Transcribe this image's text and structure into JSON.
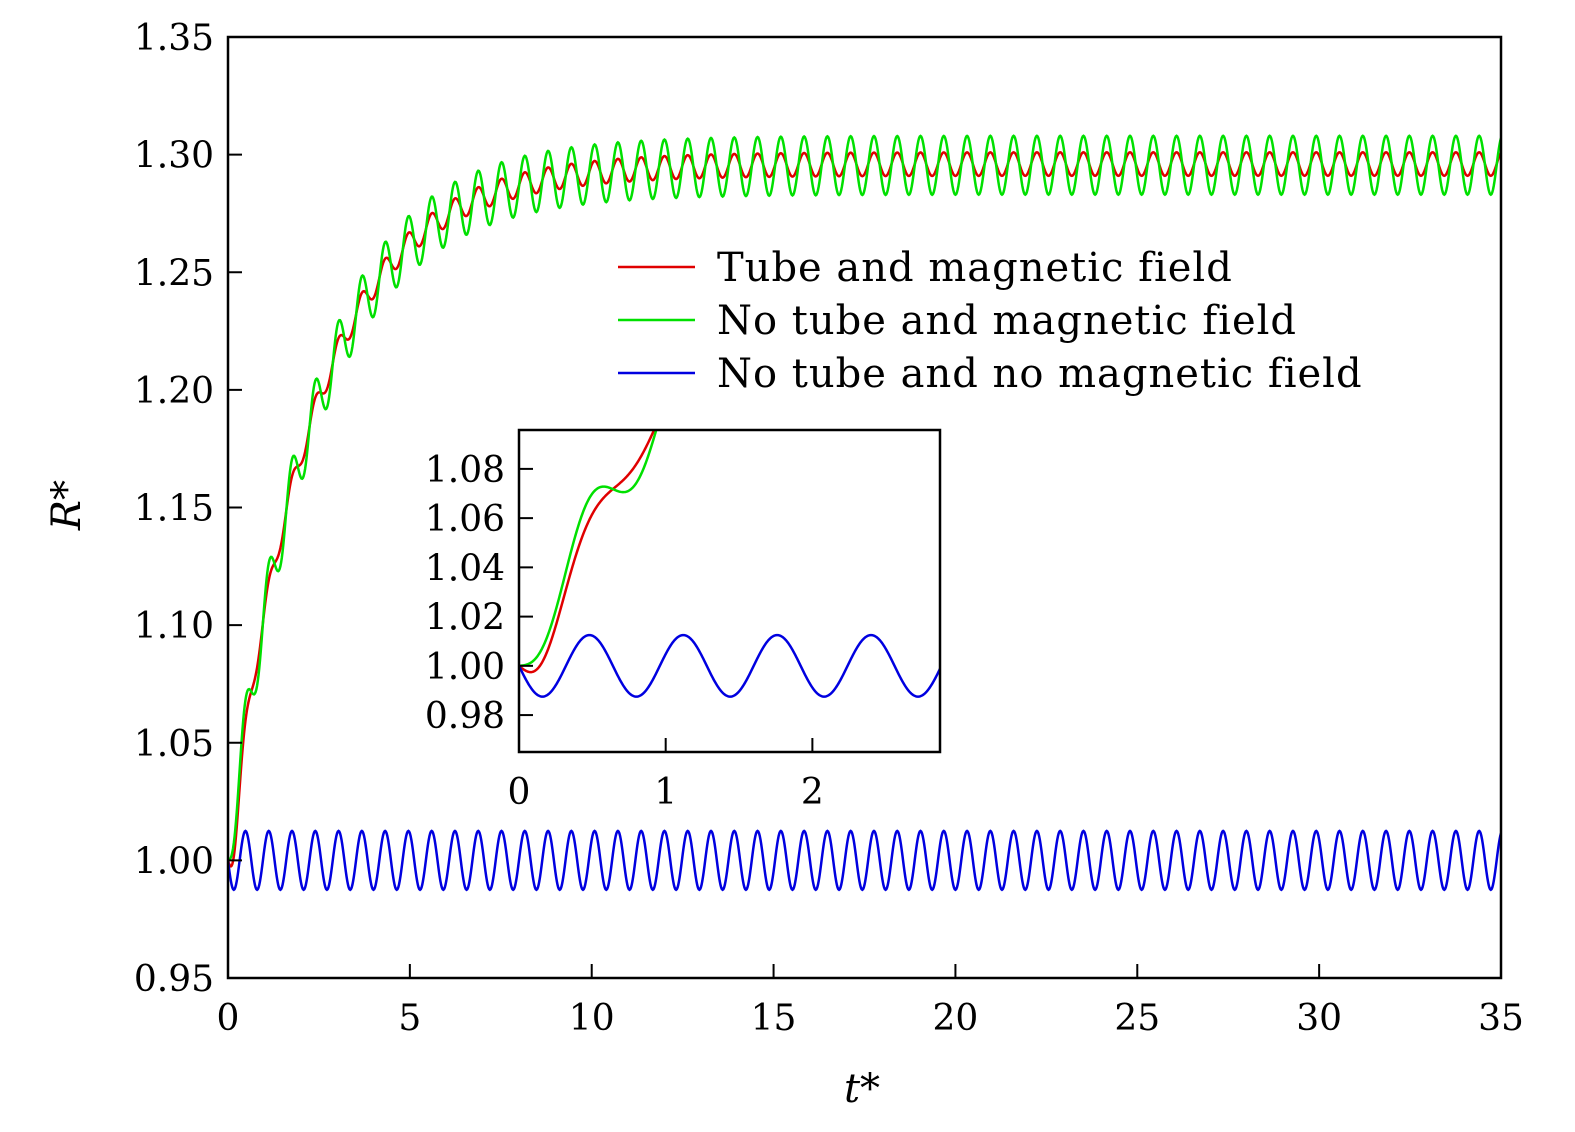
{
  "chart_data": {
    "type": "line",
    "title": "",
    "xlabel": "t*",
    "ylabel": "R*",
    "xlim": [
      0,
      35
    ],
    "ylim": [
      0.95,
      1.35
    ],
    "xticks": [
      "0",
      "5",
      "10",
      "15",
      "20",
      "25",
      "30",
      "35"
    ],
    "xtick_values": [
      0,
      5,
      10,
      15,
      20,
      25,
      30,
      35
    ],
    "yticks": [
      "0.95",
      "1.00",
      "1.05",
      "1.10",
      "1.15",
      "1.20",
      "1.25",
      "1.30",
      "1.35"
    ],
    "ytick_values": [
      0.95,
      1.0,
      1.05,
      1.1,
      1.15,
      1.2,
      1.25,
      1.3,
      1.35
    ],
    "grid": false,
    "legend_position": "upper-right",
    "series": [
      {
        "name": "Tube and magnetic field",
        "color": "#e00000",
        "model": {
          "base": 1.0,
          "rise": 0.296,
          "tau": 2.3,
          "osc_amplitude": 0.005,
          "period": 0.64,
          "onset": 0.25
        }
      },
      {
        "name": "No tube and magnetic field",
        "color": "#00e000",
        "model": {
          "base": 1.0,
          "rise": 0.2955,
          "tau": 2.3,
          "osc_amplitude": 0.0125,
          "period": 0.64,
          "onset": 0
        }
      },
      {
        "name": "No tube and no magnetic field",
        "color": "#0000e0",
        "model": {
          "base": 1.0,
          "rise": 0.0,
          "tau": 1.0,
          "osc_amplitude": 0.0125,
          "period": 0.64,
          "onset": 0
        }
      }
    ],
    "inset": {
      "xlim": [
        0,
        2.87
      ],
      "ylim": [
        0.965,
        1.0958
      ],
      "xticks": [
        "0",
        "1",
        "2"
      ],
      "xtick_values": [
        0,
        1,
        2
      ],
      "yticks": [
        "0.98",
        "1.00",
        "1.02",
        "1.04",
        "1.06",
        "1.08"
      ],
      "ytick_values": [
        0.98,
        1.0,
        1.02,
        1.04,
        1.06,
        1.08
      ]
    }
  }
}
